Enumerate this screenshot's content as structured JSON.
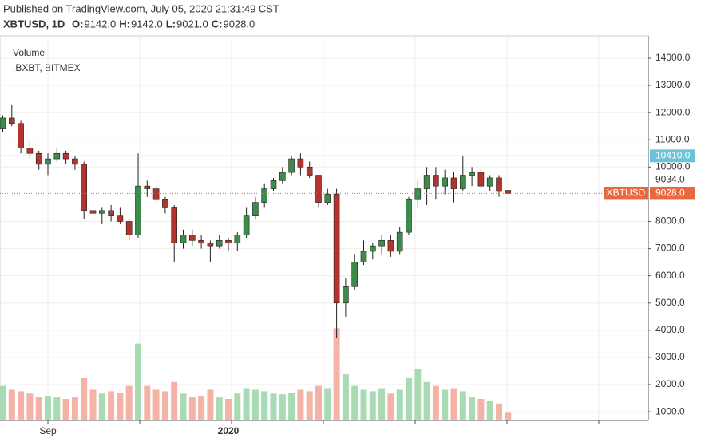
{
  "header": {
    "published": "Published on TradingView.com, July 05, 2020 21:31:49 CST",
    "symbol": "XBTUSD, 1D",
    "ohlc": [
      {
        "key": "O:",
        "text": "9142.0"
      },
      {
        "key": "H:",
        "text": "9142.0"
      },
      {
        "key": "L:",
        "text": "9021.0"
      },
      {
        "key": "C:",
        "text": "9028.0"
      }
    ]
  },
  "chart_data": {
    "type": "candlestick",
    "legend": [
      "Volume",
      ".BXBT, BITMEX"
    ],
    "categories": [
      null,
      null,
      null,
      null,
      null,
      "Sep",
      null,
      null,
      null,
      null,
      null,
      null,
      null,
      null,
      null,
      null,
      null,
      null,
      null,
      null,
      null,
      null,
      null,
      null,
      null,
      "2020",
      null,
      null,
      null,
      null,
      null,
      null,
      null,
      null,
      null,
      null,
      null,
      null,
      null,
      null,
      null,
      null,
      null,
      null,
      null,
      null,
      null,
      null,
      null,
      null,
      null,
      null,
      null,
      null,
      null,
      null,
      null
    ],
    "open": [
      11400,
      11800,
      11600,
      10700,
      10500,
      10100,
      10300,
      10500,
      10300,
      10100,
      8400,
      8300,
      8400,
      8200,
      8000,
      7500,
      9300,
      9200,
      8800,
      8500,
      7200,
      7500,
      7300,
      7200,
      7100,
      7300,
      7200,
      7500,
      8200,
      8700,
      9200,
      9500,
      9800,
      10300,
      10000,
      9700,
      8700,
      9000,
      5000,
      5600,
      6500,
      6900,
      7100,
      7300,
      6900,
      7600,
      8800,
      9200,
      9700,
      9300,
      9600,
      9200,
      9700,
      9800,
      9300,
      9600,
      9142
    ],
    "high": [
      11900,
      12300,
      11700,
      11000,
      10600,
      10500,
      10700,
      10600,
      10400,
      10200,
      8600,
      8500,
      8600,
      8500,
      8100,
      10500,
      9500,
      9300,
      8900,
      8600,
      7700,
      7700,
      7500,
      7300,
      7500,
      7400,
      7600,
      8500,
      8900,
      9400,
      9600,
      10000,
      10400,
      10500,
      10200,
      9700,
      9200,
      9200,
      5900,
      6800,
      7300,
      7200,
      7500,
      7500,
      7800,
      8900,
      9500,
      10000,
      10000,
      9900,
      9800,
      10400,
      10000,
      9900,
      9700,
      9700,
      9142
    ],
    "low": [
      11300,
      11500,
      10500,
      10300,
      9900,
      9700,
      10200,
      10100,
      9900,
      8100,
      8000,
      7900,
      8000,
      7900,
      7300,
      7400,
      8900,
      8700,
      8300,
      6500,
      7000,
      7100,
      7000,
      6500,
      7000,
      6900,
      6900,
      7400,
      8100,
      8500,
      9100,
      9400,
      9700,
      9700,
      9600,
      8500,
      8600,
      3700,
      4500,
      5500,
      6400,
      6600,
      6800,
      6700,
      6800,
      7500,
      8500,
      8600,
      8800,
      9000,
      8700,
      9100,
      9300,
      9200,
      9100,
      8900,
      9021
    ],
    "close": [
      11800,
      11600,
      10700,
      10500,
      10100,
      10300,
      10500,
      10300,
      10100,
      8400,
      8300,
      8400,
      8200,
      8000,
      7500,
      9300,
      9200,
      8800,
      8500,
      7200,
      7500,
      7300,
      7200,
      7100,
      7300,
      7200,
      7500,
      8200,
      8700,
      9200,
      9500,
      9800,
      10300,
      10000,
      9700,
      8700,
      9000,
      5000,
      5600,
      6500,
      6900,
      7100,
      7300,
      6900,
      7600,
      8800,
      9200,
      9700,
      9300,
      9600,
      9200,
      9700,
      9800,
      9300,
      9600,
      9100,
      9028
    ],
    "volume": [
      45,
      40,
      38,
      35,
      30,
      32,
      30,
      28,
      30,
      55,
      40,
      35,
      38,
      36,
      45,
      100,
      45,
      40,
      38,
      50,
      35,
      30,
      32,
      40,
      30,
      28,
      35,
      42,
      40,
      38,
      35,
      34,
      36,
      40,
      38,
      45,
      42,
      120,
      60,
      45,
      40,
      38,
      42,
      35,
      40,
      55,
      67,
      50,
      45,
      40,
      42,
      38,
      30,
      28,
      25,
      22,
      10
    ],
    "colors": {
      "up": "#3d8b4a",
      "down": "#b3342c",
      "volume_up": "#a8dbb4",
      "volume_down": "#f5b3a8"
    },
    "ylim": [
      680,
      14820
    ],
    "y2lim": [
      0,
      500
    ],
    "yticks": [
      {
        "value": 1000,
        "label": "1000.0"
      },
      {
        "value": 2000,
        "label": "2000.0"
      },
      {
        "value": 3000,
        "label": "3000.0"
      },
      {
        "value": 4000,
        "label": "4000.0"
      },
      {
        "value": 5000,
        "label": "5000.0"
      },
      {
        "value": 6000,
        "label": "6000.0"
      },
      {
        "value": 7000,
        "label": "7000.0"
      },
      {
        "value": 8000,
        "label": "8000.0"
      },
      {
        "value": 10000,
        "label": "10000.0"
      },
      {
        "value": 11000,
        "label": "11000.0"
      },
      {
        "value": 12000,
        "label": "12000.0"
      },
      {
        "value": 13000,
        "label": "13000.0"
      },
      {
        "value": 14000,
        "label": "14000.0"
      }
    ],
    "price_lines": [
      {
        "value": 10410,
        "label": "10410.0",
        "color": "#6cc3d5"
      },
      {
        "value": 9028,
        "label": "9028.0",
        "color": "#e8683f",
        "name": "XBTUSD"
      }
    ],
    "marker": {
      "value": 9034,
      "label": "9034.0"
    },
    "grid": true
  }
}
